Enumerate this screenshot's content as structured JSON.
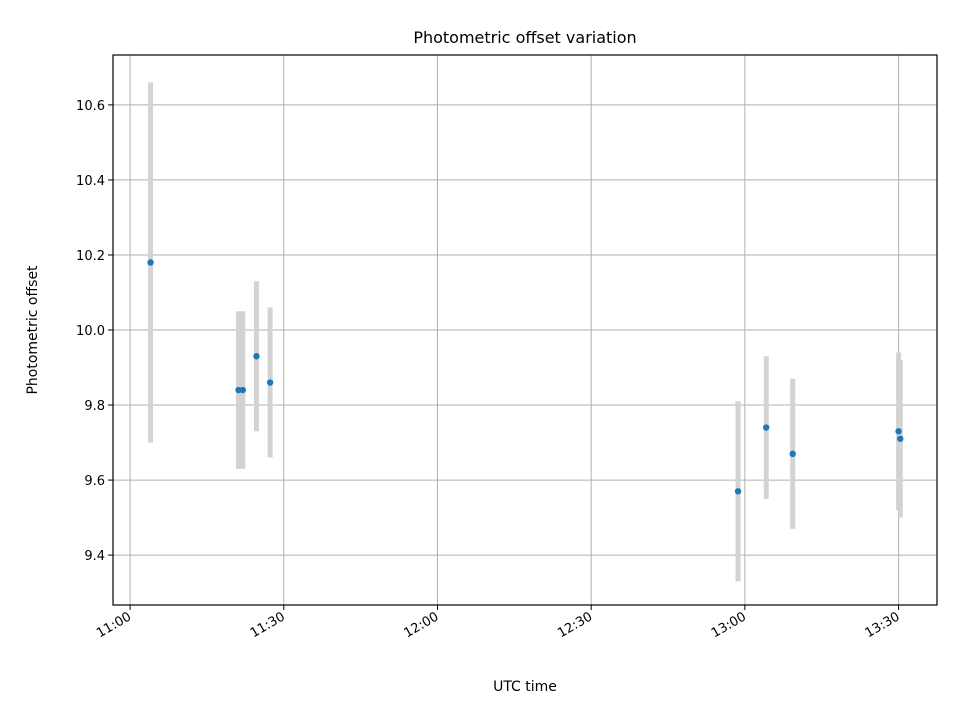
{
  "chart_data": {
    "type": "scatter",
    "title": "Photometric offset variation",
    "xlabel": "UTC time",
    "ylabel": "Photometric offset",
    "x_ticks": [
      "11:00",
      "11:30",
      "12:00",
      "12:30",
      "13:00",
      "13:30"
    ],
    "y_ticks": [
      "9.4",
      "9.6",
      "9.8",
      "10.0",
      "10.2",
      "10.4",
      "10.6"
    ],
    "xlim": [
      "10:56:40",
      "13:37:30"
    ],
    "ylim": [
      9.267,
      10.733
    ],
    "grid": true,
    "marker_color": "#1f77b4",
    "errorbar_color": "#d3d3d3",
    "points": [
      {
        "time": "11:04:00",
        "y": 10.18,
        "yerr": 0.48
      },
      {
        "time": "11:21:10",
        "y": 9.84,
        "yerr": 0.21
      },
      {
        "time": "11:22:00",
        "y": 9.84,
        "yerr": 0.21
      },
      {
        "time": "11:24:40",
        "y": 9.93,
        "yerr": 0.2
      },
      {
        "time": "11:27:20",
        "y": 9.86,
        "yerr": 0.2
      },
      {
        "time": "12:58:40",
        "y": 9.57,
        "yerr": 0.24
      },
      {
        "time": "13:04:10",
        "y": 9.74,
        "yerr": 0.19
      },
      {
        "time": "13:09:20",
        "y": 9.67,
        "yerr": 0.2
      },
      {
        "time": "13:30:00",
        "y": 9.73,
        "yerr": 0.21
      },
      {
        "time": "13:30:20",
        "y": 9.71,
        "yerr": 0.21
      }
    ]
  }
}
